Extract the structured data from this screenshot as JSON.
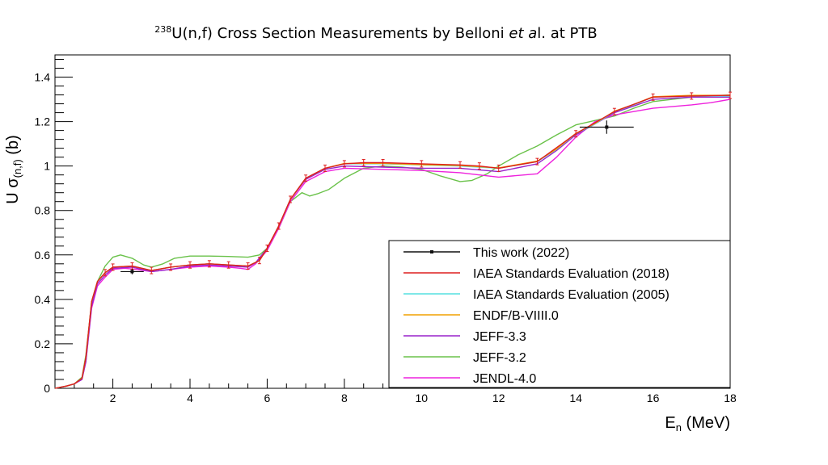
{
  "title": {
    "sup": "238",
    "pre": "U(n,f) Cross Section Measurements by Belloni ",
    "italic": "et a",
    "post": "l. at PTB"
  },
  "chart_data": {
    "type": "line",
    "xlabel": {
      "main": "E",
      "sub": "n",
      "rest": " (MeV)"
    },
    "ylabel": {
      "main": "U σ",
      "sub": "(n,f)",
      "rest": " (b)"
    },
    "xlim": [
      0.5,
      18
    ],
    "ylim": [
      0,
      1.5
    ],
    "xticks": [
      2,
      4,
      6,
      8,
      10,
      12,
      14,
      16,
      18
    ],
    "yticks": [
      0,
      0.2,
      0.4,
      0.6,
      0.8,
      1,
      1.2,
      1.4
    ],
    "xtick_labels": [
      "2",
      "4",
      "6",
      "8",
      "10",
      "12",
      "14",
      "16",
      "18"
    ],
    "ytick_labels": [
      "0",
      "0.2",
      "0.4",
      "0.6",
      "0.8",
      "1",
      "1.2",
      "1.4"
    ],
    "legend_position": "bottom-right",
    "series": [
      {
        "name": "JEFF-3.2",
        "color": "#6ac24a",
        "points": [
          [
            0.5,
            0
          ],
          [
            0.8,
            0.01
          ],
          [
            1.0,
            0.02
          ],
          [
            1.2,
            0.05
          ],
          [
            1.3,
            0.15
          ],
          [
            1.45,
            0.38
          ],
          [
            1.6,
            0.48
          ],
          [
            1.8,
            0.55
          ],
          [
            2.0,
            0.59
          ],
          [
            2.2,
            0.6
          ],
          [
            2.5,
            0.585
          ],
          [
            2.8,
            0.555
          ],
          [
            3.0,
            0.545
          ],
          [
            3.3,
            0.56
          ],
          [
            3.6,
            0.585
          ],
          [
            4.0,
            0.595
          ],
          [
            4.5,
            0.595
          ],
          [
            5.0,
            0.593
          ],
          [
            5.5,
            0.59
          ],
          [
            5.8,
            0.6
          ],
          [
            6.0,
            0.63
          ],
          [
            6.3,
            0.72
          ],
          [
            6.6,
            0.84
          ],
          [
            6.9,
            0.88
          ],
          [
            7.1,
            0.865
          ],
          [
            7.3,
            0.875
          ],
          [
            7.6,
            0.895
          ],
          [
            8.0,
            0.945
          ],
          [
            8.5,
            0.99
          ],
          [
            9.0,
            1.0
          ],
          [
            9.5,
            0.995
          ],
          [
            10.0,
            0.985
          ],
          [
            10.5,
            0.955
          ],
          [
            11.0,
            0.93
          ],
          [
            11.3,
            0.935
          ],
          [
            11.7,
            0.965
          ],
          [
            12.0,
            1.0
          ],
          [
            12.5,
            1.05
          ],
          [
            13.0,
            1.09
          ],
          [
            13.5,
            1.14
          ],
          [
            14.0,
            1.185
          ],
          [
            14.5,
            1.205
          ],
          [
            15.0,
            1.225
          ],
          [
            15.5,
            1.26
          ],
          [
            16.0,
            1.29
          ],
          [
            16.5,
            1.3
          ],
          [
            17.0,
            1.31
          ],
          [
            17.5,
            1.315
          ],
          [
            18.0,
            1.32
          ]
        ]
      },
      {
        "name": "JENDL-4.0",
        "color": "#ee22dd",
        "points": [
          [
            0.5,
            0
          ],
          [
            0.8,
            0.01
          ],
          [
            1.0,
            0.02
          ],
          [
            1.2,
            0.04
          ],
          [
            1.3,
            0.12
          ],
          [
            1.45,
            0.36
          ],
          [
            1.6,
            0.46
          ],
          [
            1.8,
            0.5
          ],
          [
            2.0,
            0.535
          ],
          [
            2.3,
            0.54
          ],
          [
            2.6,
            0.535
          ],
          [
            3.0,
            0.525
          ],
          [
            3.5,
            0.535
          ],
          [
            4.0,
            0.545
          ],
          [
            4.5,
            0.55
          ],
          [
            5.0,
            0.545
          ],
          [
            5.3,
            0.54
          ],
          [
            5.5,
            0.535
          ],
          [
            5.7,
            0.56
          ],
          [
            6.0,
            0.62
          ],
          [
            6.3,
            0.72
          ],
          [
            6.6,
            0.84
          ],
          [
            7.0,
            0.93
          ],
          [
            7.5,
            0.975
          ],
          [
            8.0,
            0.99
          ],
          [
            9.0,
            0.985
          ],
          [
            10.0,
            0.98
          ],
          [
            11.0,
            0.97
          ],
          [
            12.0,
            0.95
          ],
          [
            13.0,
            0.965
          ],
          [
            13.5,
            1.04
          ],
          [
            14.0,
            1.13
          ],
          [
            14.5,
            1.2
          ],
          [
            15.0,
            1.23
          ],
          [
            15.5,
            1.245
          ],
          [
            16.0,
            1.26
          ],
          [
            17.0,
            1.275
          ],
          [
            17.5,
            1.285
          ],
          [
            18.0,
            1.3
          ]
        ]
      },
      {
        "name": "JEFF-3.3",
        "color": "#9922cc",
        "points": [
          [
            0.5,
            0
          ],
          [
            0.8,
            0.01
          ],
          [
            1.0,
            0.02
          ],
          [
            1.2,
            0.04
          ],
          [
            1.3,
            0.12
          ],
          [
            1.45,
            0.37
          ],
          [
            1.6,
            0.47
          ],
          [
            1.8,
            0.51
          ],
          [
            2.0,
            0.54
          ],
          [
            2.5,
            0.545
          ],
          [
            3.0,
            0.525
          ],
          [
            3.5,
            0.535
          ],
          [
            4.0,
            0.55
          ],
          [
            4.5,
            0.555
          ],
          [
            5.0,
            0.55
          ],
          [
            5.5,
            0.545
          ],
          [
            5.7,
            0.565
          ],
          [
            6.0,
            0.63
          ],
          [
            6.3,
            0.73
          ],
          [
            6.6,
            0.85
          ],
          [
            7.0,
            0.94
          ],
          [
            7.5,
            0.985
          ],
          [
            8.0,
            1.0
          ],
          [
            9.0,
            0.995
          ],
          [
            10.0,
            0.99
          ],
          [
            11.0,
            0.99
          ],
          [
            12.0,
            0.975
          ],
          [
            13.0,
            1.01
          ],
          [
            13.5,
            1.07
          ],
          [
            14.0,
            1.14
          ],
          [
            14.5,
            1.19
          ],
          [
            15.0,
            1.24
          ],
          [
            15.5,
            1.27
          ],
          [
            16.0,
            1.3
          ],
          [
            17.0,
            1.31
          ],
          [
            18.0,
            1.31
          ]
        ]
      },
      {
        "name": "IAEA Standards Evaluation (2005)",
        "color": "#55e0e0",
        "points": [
          [
            0.5,
            0
          ],
          [
            0.8,
            0.01
          ],
          [
            1.0,
            0.02
          ],
          [
            1.2,
            0.045
          ],
          [
            1.3,
            0.14
          ],
          [
            1.45,
            0.39
          ],
          [
            1.6,
            0.48
          ],
          [
            1.8,
            0.52
          ],
          [
            2.0,
            0.545
          ],
          [
            2.5,
            0.55
          ],
          [
            3.0,
            0.53
          ],
          [
            3.5,
            0.545
          ],
          [
            4.0,
            0.555
          ],
          [
            4.5,
            0.56
          ],
          [
            5.0,
            0.555
          ],
          [
            5.5,
            0.55
          ],
          [
            5.8,
            0.575
          ],
          [
            6.0,
            0.63
          ],
          [
            6.3,
            0.73
          ],
          [
            6.6,
            0.85
          ],
          [
            7.0,
            0.945
          ],
          [
            7.5,
            0.99
          ],
          [
            8.0,
            1.01
          ],
          [
            9.0,
            1.01
          ],
          [
            10.0,
            1.005
          ],
          [
            11.0,
            1.0
          ],
          [
            12.0,
            0.99
          ],
          [
            13.0,
            1.02
          ],
          [
            13.5,
            1.075
          ],
          [
            14.0,
            1.145
          ],
          [
            14.5,
            1.19
          ],
          [
            15.0,
            1.245
          ],
          [
            15.5,
            1.275
          ],
          [
            16.0,
            1.31
          ],
          [
            17.0,
            1.315
          ],
          [
            18.0,
            1.315
          ]
        ]
      },
      {
        "name": "ENDF/B-VIIII.0",
        "color": "#f0a000",
        "points": [
          [
            0.5,
            0
          ],
          [
            0.8,
            0.01
          ],
          [
            1.0,
            0.02
          ],
          [
            1.2,
            0.045
          ],
          [
            1.3,
            0.14
          ],
          [
            1.45,
            0.39
          ],
          [
            1.6,
            0.48
          ],
          [
            1.8,
            0.52
          ],
          [
            2.0,
            0.545
          ],
          [
            2.5,
            0.55
          ],
          [
            3.0,
            0.53
          ],
          [
            3.5,
            0.545
          ],
          [
            4.0,
            0.555
          ],
          [
            4.5,
            0.56
          ],
          [
            5.0,
            0.555
          ],
          [
            5.5,
            0.55
          ],
          [
            5.8,
            0.575
          ],
          [
            6.0,
            0.63
          ],
          [
            6.3,
            0.73
          ],
          [
            6.6,
            0.85
          ],
          [
            7.0,
            0.945
          ],
          [
            7.5,
            0.99
          ],
          [
            8.0,
            1.012
          ],
          [
            9.0,
            1.012
          ],
          [
            10.0,
            1.006
          ],
          [
            11.0,
            1.002
          ],
          [
            12.0,
            0.992
          ],
          [
            13.0,
            1.022
          ],
          [
            13.5,
            1.077
          ],
          [
            14.0,
            1.147
          ],
          [
            14.5,
            1.192
          ],
          [
            15.0,
            1.247
          ],
          [
            15.5,
            1.277
          ],
          [
            16.0,
            1.312
          ],
          [
            17.0,
            1.318
          ],
          [
            18.0,
            1.318
          ]
        ]
      },
      {
        "name": "IAEA Standards Evaluation (2018)",
        "color": "#dd1f1f",
        "error_bars": true,
        "points": [
          [
            0.5,
            0
          ],
          [
            0.8,
            0.01
          ],
          [
            1.0,
            0.02
          ],
          [
            1.2,
            0.045
          ],
          [
            1.3,
            0.14
          ],
          [
            1.45,
            0.39
          ],
          [
            1.6,
            0.48
          ],
          [
            1.8,
            0.52
          ],
          [
            2.0,
            0.545
          ],
          [
            2.5,
            0.55
          ],
          [
            3.0,
            0.53
          ],
          [
            3.5,
            0.545
          ],
          [
            4.0,
            0.555
          ],
          [
            4.5,
            0.56
          ],
          [
            5.0,
            0.555
          ],
          [
            5.5,
            0.55
          ],
          [
            5.8,
            0.575
          ],
          [
            6.0,
            0.63
          ],
          [
            6.3,
            0.73
          ],
          [
            6.6,
            0.85
          ],
          [
            7.0,
            0.945
          ],
          [
            7.5,
            0.99
          ],
          [
            8.0,
            1.01
          ],
          [
            8.5,
            1.015
          ],
          [
            9.0,
            1.015
          ],
          [
            10.0,
            1.01
          ],
          [
            11.0,
            1.005
          ],
          [
            11.5,
            1.0
          ],
          [
            12.0,
            0.99
          ],
          [
            13.0,
            1.02
          ],
          [
            14.0,
            1.145
          ],
          [
            15.0,
            1.245
          ],
          [
            16.0,
            1.31
          ],
          [
            17.0,
            1.315
          ],
          [
            18.0,
            1.318
          ]
        ]
      },
      {
        "name": "This work (2022)",
        "color": "#111111",
        "marker": true,
        "points": [
          [
            2.5,
            0.525
          ],
          [
            14.8,
            1.175
          ]
        ],
        "xerr": [
          0.3,
          0.7
        ],
        "yerr": [
          0.012,
          0.03
        ]
      }
    ],
    "legend_order": [
      "This work (2022)",
      "IAEA Standards Evaluation (2018)",
      "IAEA Standards Evaluation (2005)",
      "ENDF/B-VIIII.0",
      "JEFF-3.3",
      "JEFF-3.2",
      "JENDL-4.0"
    ]
  }
}
